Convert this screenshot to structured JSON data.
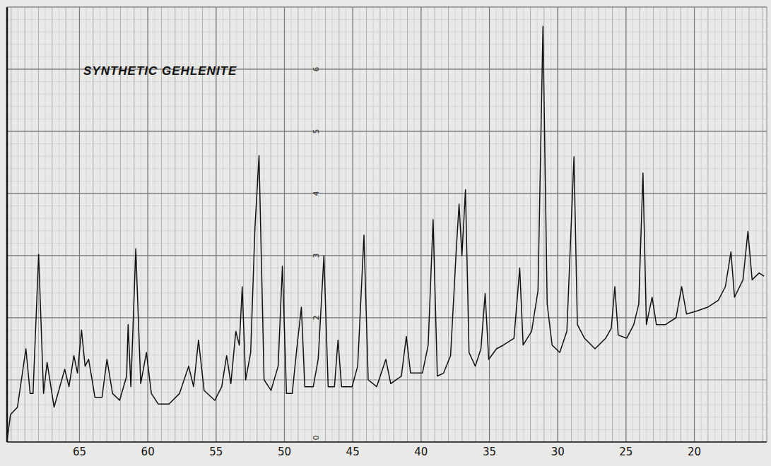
{
  "chart_data": {
    "type": "line",
    "title": "SYNTHETIC GEHLENITE",
    "x": [
      70.31,
      70.05,
      69.54,
      68.92,
      68.61,
      68.4,
      67.99,
      67.63,
      67.37,
      66.86,
      66.08,
      65.77,
      65.41,
      65.15,
      64.85,
      64.59,
      64.33,
      63.87,
      63.35,
      62.99,
      62.58,
      62.06,
      61.55,
      61.44,
      61.24,
      60.88,
      60.52,
      60.1,
      59.74,
      59.23,
      58.45,
      57.68,
      57.01,
      56.65,
      56.29,
      55.88,
      55.1,
      54.59,
      54.23,
      53.92,
      53.56,
      53.3,
      53.09,
      52.84,
      52.47,
      52.16,
      51.86,
      51.49,
      50.98,
      50.46,
      50.15,
      49.85,
      49.43,
      49.07,
      48.76,
      48.51,
      47.89,
      47.53,
      47.11,
      46.8,
      46.34,
      46.08,
      45.82,
      45.05,
      44.64,
      44.18,
      43.87,
      43.25,
      42.58,
      42.22,
      41.44,
      41.08,
      40.77,
      39.9,
      39.48,
      39.12,
      38.81,
      38.35,
      37.84,
      37.42,
      37.22,
      37.01,
      36.75,
      36.49,
      36.03,
      35.62,
      35.31,
      35.05,
      34.48,
      33.97,
      33.2,
      32.78,
      32.53,
      31.91,
      31.44,
      31.08,
      30.77,
      30.41,
      29.85,
      29.33,
      28.81,
      28.56,
      28.04,
      27.27,
      26.49,
      26.08,
      25.82,
      25.57,
      24.95,
      24.43,
      24.07,
      23.76,
      23.51,
      23.09,
      22.78,
      22.11,
      21.34,
      20.93,
      20.57,
      19.79,
      19.02,
      18.25,
      17.73,
      17.32,
      17.06,
      16.44,
      16.08,
      15.77,
      15.26,
      14.9
    ],
    "series": [
      {
        "color": "#111111",
        "values": [
          0,
          0.44,
          0.56,
          1.5,
          0.78,
          0.78,
          3.02,
          0.78,
          1.28,
          0.56,
          1.17,
          0.89,
          1.39,
          1.11,
          1.8,
          1.22,
          1.33,
          0.72,
          0.72,
          1.33,
          0.78,
          0.67,
          1.06,
          1.89,
          0.89,
          3.11,
          0.94,
          1.44,
          0.78,
          0.61,
          0.61,
          0.78,
          1.22,
          0.89,
          1.64,
          0.83,
          0.67,
          0.89,
          1.39,
          0.94,
          1.78,
          1.56,
          2.5,
          1.0,
          1.44,
          3.44,
          4.61,
          1.0,
          0.83,
          1.22,
          2.83,
          0.78,
          0.78,
          1.56,
          2.17,
          0.89,
          0.89,
          1.33,
          3.0,
          0.89,
          0.89,
          1.64,
          0.89,
          0.89,
          1.22,
          3.33,
          1.0,
          0.89,
          1.33,
          0.94,
          1.06,
          1.7,
          1.11,
          1.11,
          1.56,
          3.58,
          1.06,
          1.11,
          1.39,
          3.11,
          3.83,
          3.0,
          4.06,
          1.44,
          1.22,
          1.5,
          2.39,
          1.33,
          1.5,
          1.56,
          1.67,
          2.8,
          1.56,
          1.78,
          2.44,
          6.69,
          2.22,
          1.56,
          1.44,
          1.78,
          4.59,
          1.89,
          1.67,
          1.5,
          1.67,
          1.83,
          2.5,
          1.72,
          1.67,
          1.89,
          2.22,
          4.33,
          1.89,
          2.33,
          1.89,
          1.89,
          2.0,
          2.5,
          2.06,
          2.11,
          2.17,
          2.28,
          2.5,
          3.06,
          2.33,
          2.61,
          3.39,
          2.61,
          2.72,
          2.67
        ]
      }
    ],
    "xlim": [
      70.3,
      14.7
    ],
    "ylim": [
      0,
      7
    ],
    "xticks": [
      65,
      60,
      55,
      50,
      45,
      40,
      35,
      30,
      25,
      20
    ],
    "yticks": [
      0,
      2,
      3,
      4,
      5,
      6
    ],
    "grid": true
  }
}
